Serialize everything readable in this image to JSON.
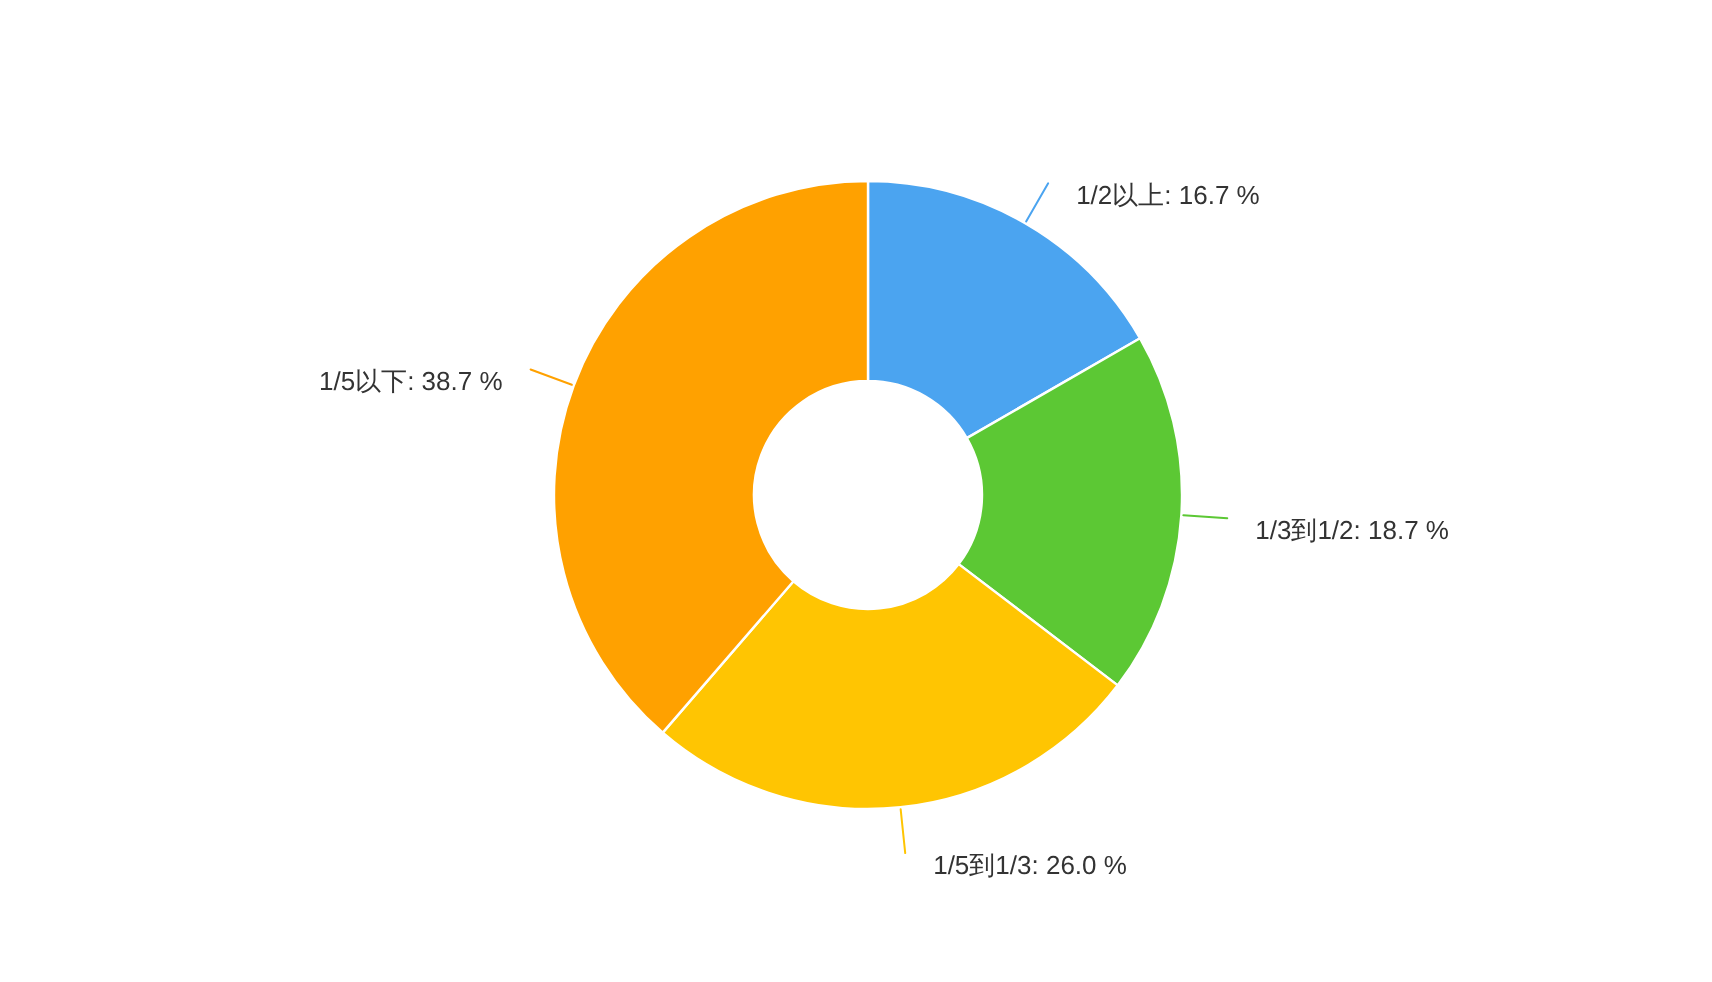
{
  "chart_data": {
    "type": "donut",
    "categories": [
      "1/2以上",
      "1/3到1/2",
      "1/5到1/3",
      "1/5以下"
    ],
    "values": [
      16.7,
      18.7,
      26.0,
      38.7
    ],
    "colors": [
      "#4ba4f0",
      "#5cc834",
      "#ffc502",
      "#ffa100"
    ],
    "value_labels": [
      "16.7 %",
      "18.7 %",
      "26.0 %",
      "38.7 %"
    ]
  }
}
